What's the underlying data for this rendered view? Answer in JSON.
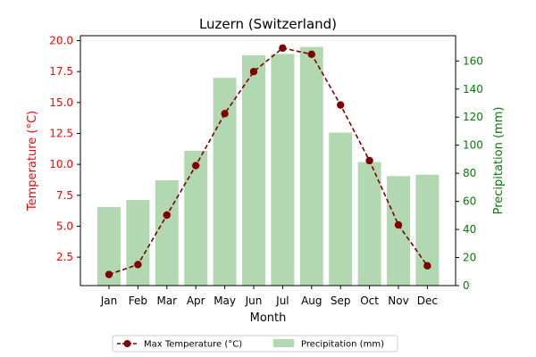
{
  "chart_data": {
    "type": "bar+line",
    "title": "Luzern (Switzerland)",
    "xlabel": "Month",
    "categories": [
      "Jan",
      "Feb",
      "Mar",
      "Apr",
      "May",
      "Jun",
      "Jul",
      "Aug",
      "Sep",
      "Oct",
      "Nov",
      "Dec"
    ],
    "left_axis": {
      "label": "Temperature (°C)",
      "color": "#ff0000",
      "ylim": [
        0.2,
        20.4
      ],
      "ticks": [
        2.5,
        5.0,
        7.5,
        10.0,
        12.5,
        15.0,
        17.5,
        20.0
      ],
      "tick_labels": [
        "2.5",
        "5.0",
        "7.5",
        "10.0",
        "12.5",
        "15.0",
        "17.5",
        "20.0"
      ]
    },
    "right_axis": {
      "label": "Precipitation (mm)",
      "color": "#008000",
      "ylim": [
        0,
        178
      ],
      "ticks": [
        0,
        20,
        40,
        60,
        80,
        100,
        120,
        140,
        160
      ],
      "tick_labels": [
        "0",
        "20",
        "40",
        "60",
        "80",
        "100",
        "120",
        "140",
        "160"
      ]
    },
    "series": [
      {
        "name": "Max Temperature (°C)",
        "kind": "line",
        "axis": "left",
        "color": "#800000",
        "style": "dashed",
        "marker": "circle",
        "values": [
          1.1,
          1.9,
          5.9,
          9.9,
          14.1,
          17.5,
          19.4,
          18.9,
          14.8,
          10.3,
          5.1,
          1.8
        ]
      },
      {
        "name": "Precipitation (mm)",
        "kind": "bar",
        "axis": "right",
        "color": "#b2d8b2",
        "values": [
          56,
          61,
          75,
          96,
          148,
          164,
          165,
          170,
          109,
          88,
          78,
          79
        ]
      }
    ],
    "legend": {
      "placement": "bottom-center"
    },
    "grid": false
  }
}
